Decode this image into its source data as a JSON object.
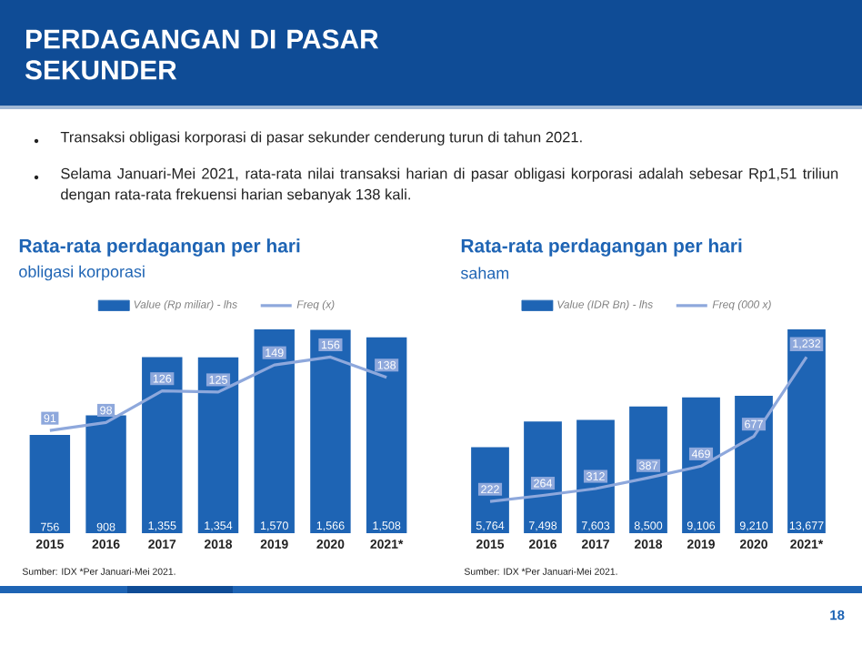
{
  "chart_data": [
    {
      "type": "other",
      "title": "PERDAGANGAN DI PASAR SEKUNDER",
      "annotations": [
        "Transaksi obligasi korporasi di pasar sekunder cenderung turun di tahun 2021.",
        "Selama Januari-Mei 2021, rata-rata nilai transaksi harian di pasar obligasi korporasi adalah sebesar Rp1,51 triliun dengan rata-rata frekuensi harian sebanyak 138 kali.",
        "18"
      ]
    },
    {
      "type": "bar",
      "title": "Rata-rata perdagangan per hari",
      "subtitle": "obligasi korporasi",
      "categories": [
        "2015",
        "2016",
        "2017",
        "2018",
        "2019",
        "2020",
        "2021*"
      ],
      "series": [
        {
          "name": "Value (Rp miliar) - lhs",
          "type": "bar",
          "color": "#1e64b4",
          "values": [
            756,
            908,
            1355,
            1354,
            1570,
            1566,
            1508
          ],
          "value_labels": [
            "756",
            "908",
            "1,355",
            "1,354",
            "1,570",
            "1,566",
            "1,508"
          ]
        },
        {
          "name": "Freq (x)",
          "type": "line",
          "axis": "y2",
          "color": "#8ea8dc",
          "values": [
            91,
            98,
            126,
            125,
            149,
            156,
            138
          ],
          "value_labels": [
            "91",
            "98",
            "126",
            "125",
            "149",
            "156",
            "138"
          ]
        }
      ],
      "tick_labels": "x",
      "legend": "top",
      "annotations": [
        "Sumber: IDX *Per Januari-Mei 2021."
      ]
    },
    {
      "type": "bar",
      "title": "Rata-rata perdagangan per hari",
      "subtitle": "saham",
      "categories": [
        "2015",
        "2016",
        "2017",
        "2018",
        "2019",
        "2020",
        "2021*"
      ],
      "series": [
        {
          "name": "Value (IDR Bn) - lhs",
          "type": "bar",
          "color": "#1e64b4",
          "values": [
            5764,
            7498,
            7603,
            8500,
            9106,
            9210,
            13677
          ],
          "value_labels": [
            "5,764",
            "7,498",
            "7,603",
            "8,500",
            "9,106",
            "9,210",
            "13,677"
          ]
        },
        {
          "name": "Freq (000 x)",
          "type": "line",
          "axis": "y2",
          "color": "#8ea8dc",
          "values": [
            222,
            264,
            312,
            387,
            469,
            677,
            1232
          ],
          "value_labels": [
            "222",
            "264",
            "312",
            "387",
            "469",
            "677",
            "1,232"
          ]
        }
      ],
      "tick_labels": "x",
      "legend": "top",
      "annotations": [
        "Sumber: IDX *Per Januari-Mei 2021."
      ]
    }
  ]
}
